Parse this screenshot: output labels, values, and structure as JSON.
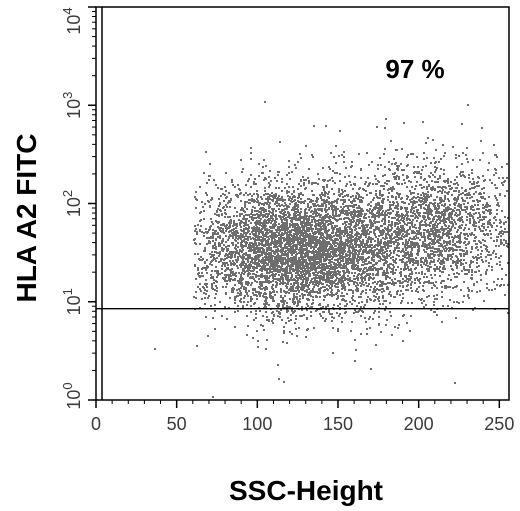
{
  "chart_data": {
    "type": "scatter",
    "title": "",
    "xlabel": "SSC-Height",
    "ylabel": "HLA A2 FITC",
    "annotation": "97 %",
    "xlim": [
      0,
      256
    ],
    "ylim": [
      1,
      10000
    ],
    "y_scale": "log",
    "x_ticks": [
      0,
      50,
      100,
      150,
      200,
      250
    ],
    "x_tick_labels": [
      "0",
      "50",
      "100",
      "150",
      "200",
      "250"
    ],
    "y_ticks": [
      1,
      10,
      100,
      1000,
      10000
    ],
    "y_tick_labels": [
      {
        "base": "10",
        "exp": "0"
      },
      {
        "base": "10",
        "exp": "1"
      },
      {
        "base": "10",
        "exp": "2"
      },
      {
        "base": "10",
        "exp": "3"
      },
      {
        "base": "10",
        "exp": "4"
      }
    ],
    "gate_line_y": 8.5,
    "grid": false,
    "series": [
      {
        "color": "#6e6e6e",
        "clusters": [
          {
            "x_mean": 125,
            "x_sd": 32,
            "log_y_mean": 1.55,
            "log_y_sd": 0.33,
            "count": 5200,
            "x_min": 60,
            "x_max": 255
          },
          {
            "x_mean": 205,
            "x_sd": 28,
            "log_y_mean": 1.75,
            "log_y_sd": 0.35,
            "count": 2200,
            "x_min": 120,
            "x_max": 255
          }
        ],
        "outliers": [
          {
            "x": 104,
            "y": 1100
          },
          {
            "x": 142,
            "y": 630
          },
          {
            "x": 36,
            "y": 3.4
          },
          {
            "x": 72,
            "y": 1.1
          },
          {
            "x": 178,
            "y": 330
          },
          {
            "x": 246,
            "y": 400
          }
        ]
      }
    ]
  }
}
